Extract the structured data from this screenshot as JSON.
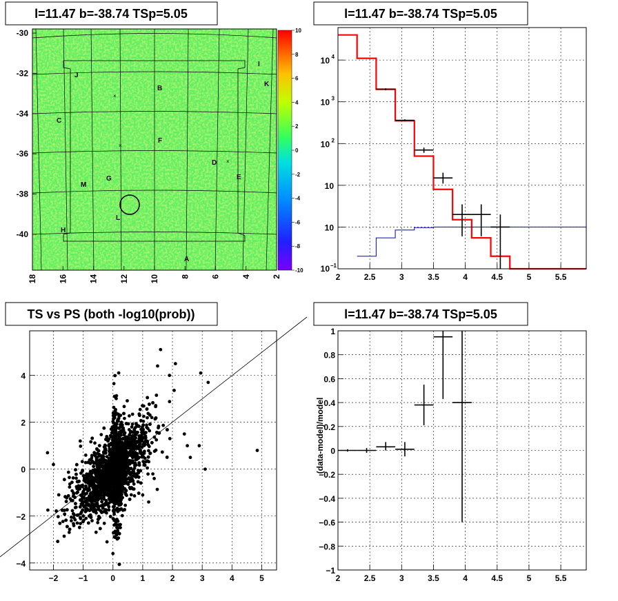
{
  "panels": {
    "map": {
      "title": "l=11.47 b=-38.74 TSp=5.05",
      "x_ticks": [
        "18",
        "16",
        "14",
        "12",
        "10",
        "8",
        "6",
        "4",
        "2"
      ],
      "y_ticks": [
        "-30",
        "-32",
        "-34",
        "-36",
        "-38",
        "-40"
      ],
      "colorbar_ticks": [
        "10",
        "8",
        "6",
        "4",
        "2",
        "0",
        "-2",
        "-4",
        "-6",
        "-8",
        "-10"
      ],
      "labels": [
        "J",
        "I",
        "K",
        "B",
        "C",
        "F",
        "D",
        "E",
        "G",
        "M",
        "L",
        "H",
        "A"
      ]
    },
    "spectrum": {
      "title": "l=11.47 b=-38.74 TSp=5.05",
      "x_ticks": [
        "2",
        "2.5",
        "3",
        "3.5",
        "4",
        "4.5",
        "5",
        "5.5"
      ],
      "y_ticks": [
        "10",
        "10",
        "10",
        "10",
        "10",
        "1"
      ],
      "y_tick_sup": [
        "4",
        "3",
        "2",
        "",
        "",
        ""
      ],
      "y_tick_last": "10",
      "y_tick_last_sup": "−1"
    },
    "scatter": {
      "title": "TS vs PS (both -log10(prob))",
      "x_ticks": [
        "−2",
        "−1",
        "0",
        "1",
        "2",
        "3",
        "4",
        "5"
      ],
      "y_ticks": [
        "4",
        "2",
        "0",
        "−2",
        "−4"
      ]
    },
    "ratio": {
      "title": "l=11.47 b=-38.74 TSp=5.05",
      "ylabel": "(data-model)/model",
      "x_ticks": [
        "2",
        "2.5",
        "3",
        "3.5",
        "4",
        "4.5",
        "5",
        "5.5"
      ],
      "y_ticks": [
        "1",
        "0.8",
        "0.6",
        "0.4",
        "0.2",
        "0",
        "−0.2",
        "−0.4",
        "−0.6",
        "−0.8",
        "−1"
      ]
    }
  },
  "chart_data": [
    {
      "type": "heatmap",
      "title": "l=11.47 b=-38.74 TSp=5.05",
      "x_range": [
        18,
        2
      ],
      "y_range": [
        -41.5,
        -29.5
      ],
      "z_range": [
        -10,
        10
      ],
      "colorbar": "rainbow",
      "source_labels": [
        "A",
        "B",
        "C",
        "D",
        "E",
        "F",
        "G",
        "H",
        "I",
        "J",
        "K",
        "L",
        "M"
      ]
    },
    {
      "type": "line",
      "title": "l=11.47 b=-38.74 TSp=5.05",
      "log_y": true,
      "xlim": [
        2,
        5.9
      ],
      "ylim": [
        0.1,
        60000
      ],
      "grid": true,
      "series": [
        {
          "color": "#ff0000",
          "bin_edges": [
            2.0,
            2.3,
            2.6,
            2.9,
            3.2,
            3.5,
            3.8,
            4.1,
            4.4,
            4.7,
            5.9
          ],
          "values": [
            40000,
            11000,
            2000,
            350,
            50,
            8,
            1.5,
            0.55,
            0.2,
            0.1
          ]
        },
        {
          "color": "#0000cc",
          "bin_edges": [
            2.3,
            2.6,
            2.9,
            3.2,
            3.5,
            3.8,
            4.1,
            4.4,
            4.7,
            5.9
          ],
          "values": [
            0.2,
            0.55,
            0.85,
            0.97,
            1.0,
            1.0,
            1.0,
            1.0,
            1.0
          ]
        },
        {
          "color": "#000000",
          "x": [
            2.75,
            3.05,
            3.35,
            3.65,
            3.95,
            4.25,
            4.55
          ],
          "xerr": [
            0.15,
            0.15,
            0.15,
            0.15,
            0.15,
            0.15,
            0.15
          ],
          "y": [
            2000,
            360,
            70,
            15,
            2.0,
            2.0,
            1.0
          ],
          "ylo": [
            1900,
            340,
            60,
            11,
            0.6,
            0.6,
            0.1
          ],
          "yhi": [
            2100,
            380,
            80,
            20,
            3.5,
            3.5,
            2.0
          ]
        }
      ]
    },
    {
      "type": "scatter",
      "title": "TS vs PS (both -log10(prob))",
      "xlim": [
        -2.8,
        5.5
      ],
      "ylim": [
        -4.3,
        5.9
      ],
      "grid": true,
      "diagonal_line": "y = x",
      "series": [
        {
          "color": "#000000",
          "outliers": [
            [
              4.85,
              0.8
            ],
            [
              2.95,
              4.1
            ],
            [
              3.2,
              3.7
            ],
            [
              1.6,
              5.1
            ],
            [
              2.1,
              4.5
            ],
            [
              2.5,
              1.0
            ],
            [
              3.1,
              0.0
            ],
            [
              2.6,
              0.5
            ],
            [
              1.9,
              4.0
            ],
            [
              1.5,
              4.4
            ],
            [
              2.9,
              1.0
            ],
            [
              2.4,
              1.5
            ],
            [
              -2.2,
              0.7
            ],
            [
              -1.4,
              -2.2
            ],
            [
              -2.0,
              0.2
            ],
            [
              -1.2,
              -2.3
            ],
            [
              0.0,
              -3.6
            ],
            [
              -0.2,
              -3.1
            ],
            [
              -0.8,
              -2.0
            ],
            [
              1.0,
              -1.1
            ],
            [
              1.2,
              -1.4
            ],
            [
              -1.1,
              1.2
            ]
          ]
        }
      ]
    },
    {
      "type": "scatter",
      "title": "l=11.47 b=-38.74 TSp=5.05",
      "ylabel": "(data-model)/model",
      "xlim": [
        2,
        5.9
      ],
      "ylim": [
        -1,
        1
      ],
      "grid": true,
      "series": [
        {
          "color": "#000000",
          "x": [
            2.15,
            2.45,
            2.75,
            3.05,
            3.35,
            3.65,
            3.95
          ],
          "xerr": [
            0.15,
            0.15,
            0.15,
            0.15,
            0.15,
            0.15,
            0.15
          ],
          "y": [
            0.0,
            0.0,
            0.03,
            0.01,
            0.38,
            0.95,
            0.4
          ],
          "ylo": [
            -0.01,
            -0.02,
            0.0,
            -0.05,
            0.21,
            0.43,
            -0.6
          ],
          "yhi": [
            0.01,
            0.02,
            0.07,
            0.07,
            0.55,
            1.0,
            1.0
          ]
        }
      ]
    }
  ]
}
